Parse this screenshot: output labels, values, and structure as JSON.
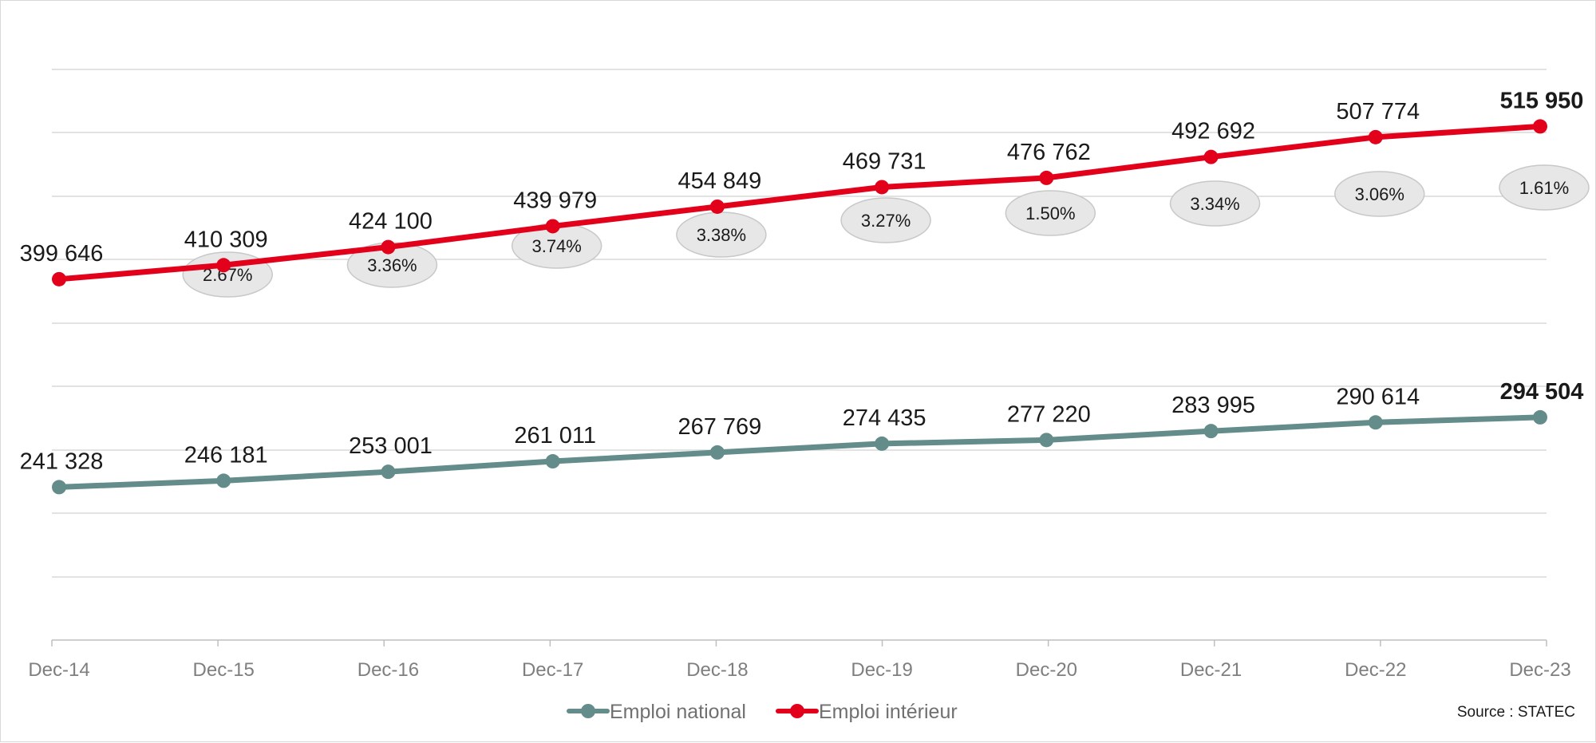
{
  "chart_data": {
    "type": "line",
    "categories": [
      "Dec-14",
      "Dec-15",
      "Dec-16",
      "Dec-17",
      "Dec-18",
      "Dec-19",
      "Dec-20",
      "Dec-21",
      "Dec-22",
      "Dec-23"
    ],
    "series": [
      {
        "name": "Emploi intérieur",
        "color": "#e3001b",
        "values": [
          399646,
          410309,
          424100,
          439979,
          454849,
          469731,
          476762,
          492692,
          507774,
          515950
        ],
        "labels": [
          "399 646",
          "410 309",
          "424 100",
          "439 979",
          "454 849",
          "469 731",
          "476 762",
          "492 692",
          "507 774",
          "515 950"
        ],
        "growth_labels": [
          "",
          "2.67%",
          "3.36%",
          "3.74%",
          "3.38%",
          "3.27%",
          "1.50%",
          "3.34%",
          "3.06%",
          "1.61%"
        ]
      },
      {
        "name": "Emploi national",
        "color": "#638c8a",
        "values": [
          241328,
          246181,
          253001,
          261011,
          267769,
          274435,
          277220,
          283995,
          290614,
          294504
        ],
        "labels": [
          "241 328",
          "246 181",
          "253 001",
          "261 011",
          "267 769",
          "274 435",
          "277 220",
          "283 995",
          "290 614",
          "294 504"
        ]
      }
    ],
    "legend_order": [
      "Emploi national",
      "Emploi intérieur"
    ],
    "legend_position": "bottom",
    "grid": true,
    "y_axis_visible": false,
    "source": "Source : STATEC"
  }
}
